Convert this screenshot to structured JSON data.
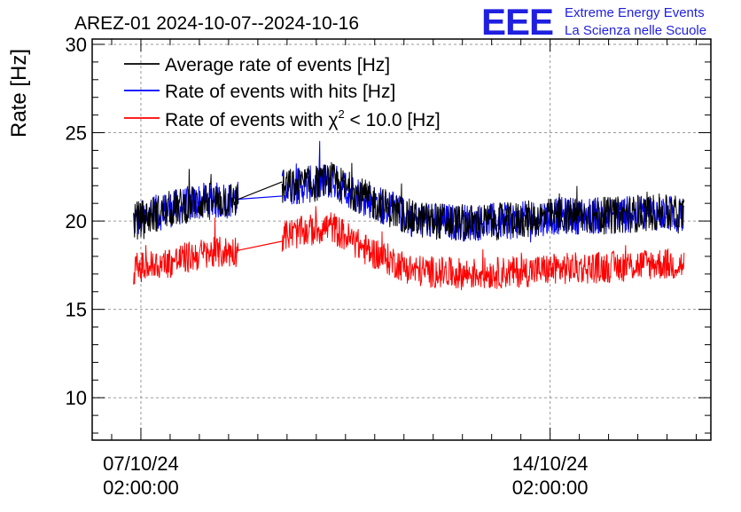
{
  "header": {
    "title": "AREZ-01 2024-10-07--2024-10-16",
    "logo_text": "EEE",
    "logo_line1": "Extreme Energy Events",
    "logo_line2": "La Scienza nelle Scuole"
  },
  "colors": {
    "logo": "#1f1fe0",
    "average": "#000000",
    "hits": "#0000ff",
    "chi2": "#ff0000",
    "grid": "#9a9a9a"
  },
  "chart_data": {
    "type": "line",
    "title": "AREZ-01 2024-10-07--2024-10-16",
    "ylabel": "Rate [Hz]",
    "xlabel": "",
    "ylim": [
      7.6,
      30.3
    ],
    "xlim": [
      "2024-10-06 06:00:00",
      "2024-10-16 20:00:00"
    ],
    "x_is_datetime": true,
    "yticks": [
      10,
      15,
      20,
      25,
      30
    ],
    "yticklabels": [
      "10",
      "15",
      "20",
      "25",
      "30"
    ],
    "xticks": [
      {
        "x": "2024-10-07 02:00:00",
        "label_date": "07/10/24",
        "label_time": "02:00:00"
      },
      {
        "x": "2024-10-14 02:00:00",
        "label_date": "14/10/24",
        "label_time": "02:00:00"
      }
    ],
    "grid": true,
    "legend_position": "top-left",
    "data_gap": [
      "2024-10-08 18:00:00",
      "2024-10-09 12:00:00"
    ],
    "x": [
      "2024-10-06 23:00:00",
      "2024-10-07 12:00:00",
      "2024-10-08 02:00:00",
      "2024-10-08 17:00:00",
      "2024-10-09 13:00:00",
      "2024-10-10 01:00:00",
      "2024-10-10 08:00:00",
      "2024-10-10 22:00:00",
      "2024-10-11 18:00:00",
      "2024-10-12 14:00:00",
      "2024-10-13 10:00:00",
      "2024-10-14 06:00:00",
      "2024-10-15 02:00:00",
      "2024-10-15 22:00:00",
      "2024-10-16 09:00:00"
    ],
    "series": [
      {
        "name": "Average rate of events [Hz]",
        "color": "#000000",
        "values": [
          20.0,
          20.6,
          21.1,
          21.2,
          21.9,
          22.1,
          22.3,
          21.3,
          20.1,
          19.9,
          20.0,
          20.3,
          20.3,
          20.5,
          20.3
        ]
      },
      {
        "name": "Rate of events with hits [Hz]",
        "color": "#0000ff",
        "values": [
          20.0,
          20.6,
          21.1,
          21.2,
          21.9,
          22.1,
          22.3,
          21.3,
          20.1,
          19.9,
          20.0,
          20.3,
          20.3,
          20.5,
          20.3
        ]
      },
      {
        "name": "Rate of events with χ² < 10.0 [Hz]",
        "color": "#ff0000",
        "values": [
          17.3,
          17.6,
          18.1,
          18.3,
          19.2,
          19.5,
          19.7,
          18.4,
          17.2,
          17.0,
          17.1,
          17.3,
          17.4,
          17.6,
          17.5
        ]
      }
    ],
    "legend": {
      "average_text": "Average rate of events [Hz]",
      "hits_text": "Rate of events with hits [Hz]",
      "chi2_prefix": "Rate of events with ",
      "chi2_symbol": "χ",
      "chi2_exp": "2",
      "chi2_suffix": " < 10.0 [Hz]"
    }
  }
}
